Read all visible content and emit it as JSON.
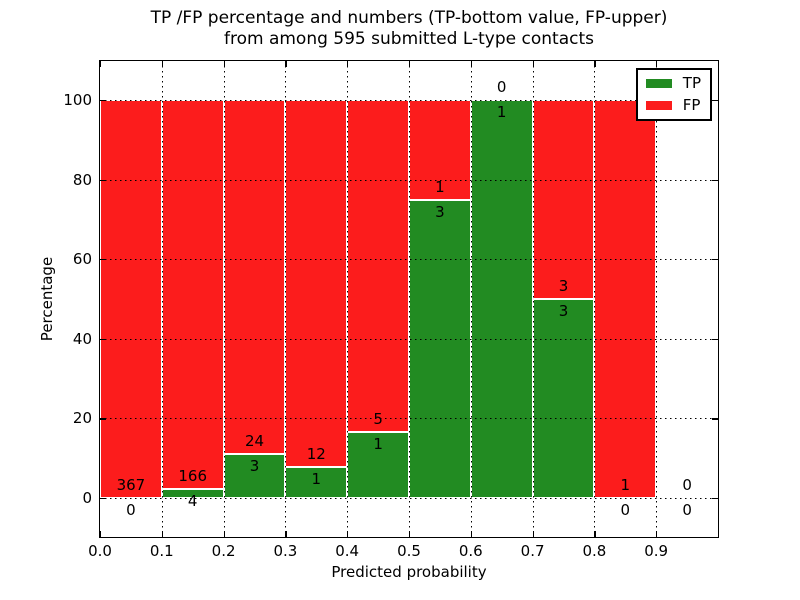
{
  "title": {
    "line1": "TP /FP percentage and numbers (TP-bottom value, FP-upper)",
    "line2": "from among 595 submitted L-type contacts"
  },
  "axes": {
    "xlabel": "Predicted probability",
    "ylabel": "Percentage"
  },
  "legend": [
    {
      "label": "TP",
      "color": "#228b22"
    },
    {
      "label": "FP",
      "color": "#fc1c1c"
    }
  ],
  "chart_data": {
    "type": "bar",
    "stacked": true,
    "units": "percent_of_bin",
    "title": "TP /FP percentage and numbers (TP-bottom value, FP-upper) from among 595 submitted L-type contacts",
    "xlabel": "Predicted probability",
    "ylabel": "Percentage",
    "total_contacts": 595,
    "bin_width": 0.1,
    "categories": [
      "0.0-0.1",
      "0.1-0.2",
      "0.2-0.3",
      "0.3-0.4",
      "0.4-0.5",
      "0.5-0.6",
      "0.6-0.7",
      "0.7-0.8",
      "0.8-0.9",
      "0.9-1.0"
    ],
    "series": [
      {
        "name": "TP",
        "color": "#228b22",
        "counts": [
          0,
          4,
          3,
          1,
          1,
          3,
          1,
          3,
          0,
          0
        ],
        "percent": [
          0,
          2.35,
          11.11,
          7.69,
          16.67,
          75.0,
          100.0,
          50.0,
          0,
          null
        ]
      },
      {
        "name": "FP",
        "color": "#fc1c1c",
        "counts": [
          367,
          166,
          24,
          12,
          5,
          1,
          0,
          3,
          1,
          0
        ],
        "percent": [
          100.0,
          97.65,
          88.89,
          92.31,
          83.33,
          25.0,
          0,
          50.0,
          100.0,
          null
        ]
      }
    ],
    "xlim": [
      0.0,
      1.0
    ],
    "ylim": [
      -10,
      110
    ],
    "grid": "dotted",
    "legend_position": "upper right",
    "xticks": {
      "values": [
        0.0,
        0.1,
        0.2,
        0.3,
        0.4,
        0.5,
        0.6,
        0.7,
        0.8,
        0.9
      ],
      "labels": [
        "0.0",
        "0.1",
        "0.2",
        "0.3",
        "0.4",
        "0.5",
        "0.6",
        "0.7",
        "0.8",
        "0.9"
      ]
    },
    "yticks": {
      "values": [
        0,
        20,
        40,
        60,
        80,
        100
      ],
      "labels": [
        "0",
        "20",
        "40",
        "60",
        "80",
        "100"
      ]
    }
  }
}
